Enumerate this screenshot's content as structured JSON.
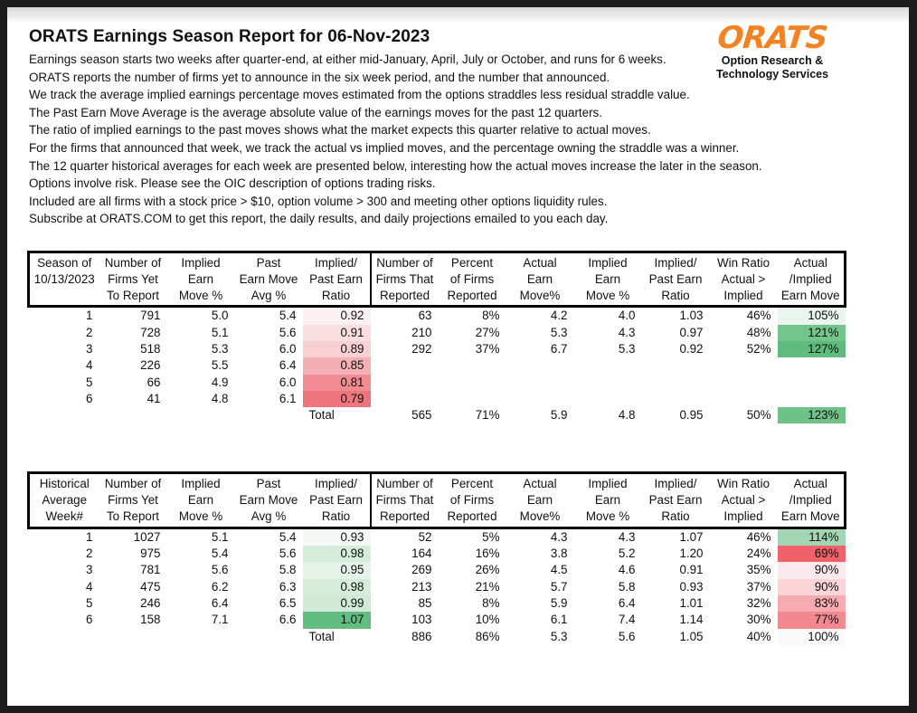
{
  "report": {
    "title": "ORATS Earnings Season Report for 06-Nov-2023",
    "intro_lines": [
      "Earnings season starts two weeks after quarter-end, at either mid-January, April, July or October, and runs for 6 weeks.",
      "ORATS reports the number of firms yet to announce in the six week period, and the number that announced.",
      "We track the average implied earnings percentage moves estimated from the options straddles less residual straddle value.",
      "The Past Earn Move Average is the average absolute value of the earnings moves for the past 12 quarters.",
      "The ratio of implied earnings to the past moves shows what the market expects this quarter relative to actual moves.",
      "For the firms that announced that week, we track the actual vs implied moves, and the percentage owning the straddle was a winner.",
      "The 12 quarter historical averages for each week are presented below, interesting how the actual moves increase the later in the season.",
      "Options involve risk. Please see the OIC description of options trading risks.",
      "Included are all firms with a stock price > $10, option volume > 300 and meeting other options liquidity rules.",
      "Subscribe at ORATS.COM to get this report, the daily results, and daily projections emailed to you each day."
    ]
  },
  "logo": {
    "wordmark": "ORATS",
    "subtitle_line1": "Option Research &",
    "subtitle_line2": "Technology Services",
    "brand_color": "#F58220"
  },
  "tables": [
    {
      "name": "current-season",
      "col_headers": [
        [
          "Season of",
          "10/13/2023",
          ""
        ],
        [
          "Number of",
          "Firms Yet",
          "To Report"
        ],
        [
          "Implied",
          "Earn",
          "Move %"
        ],
        [
          "Past",
          "Earn Move",
          "Avg %"
        ],
        [
          "Implied/",
          "Past Earn",
          "Ratio"
        ],
        [
          "Number of",
          "Firms That",
          "Reported"
        ],
        [
          "Percent",
          "of Firms",
          "Reported"
        ],
        [
          "Actual",
          "Earn",
          "Move%"
        ],
        [
          "Implied",
          "Earn",
          "Move %"
        ],
        [
          "Implied/",
          "Past Earn",
          "Ratio"
        ],
        [
          "Win Ratio",
          "Actual >",
          "Implied"
        ],
        [
          "Actual",
          "/Implied",
          "Earn Move"
        ]
      ],
      "rows": [
        {
          "cells": [
            "1",
            "791",
            "5.0",
            "5.4",
            "0.92",
            "63",
            "8%",
            "4.2",
            "4.0",
            "1.03",
            "46%",
            "105%"
          ],
          "ratio_bg": "#FBF1F2",
          "last_bg": "#EAF5ED"
        },
        {
          "cells": [
            "2",
            "728",
            "5.1",
            "5.6",
            "0.91",
            "210",
            "27%",
            "5.3",
            "4.3",
            "0.97",
            "48%",
            "121%"
          ],
          "ratio_bg": "#FADEE0",
          "last_bg": "#74C58C"
        },
        {
          "cells": [
            "3",
            "518",
            "5.3",
            "6.0",
            "0.89",
            "292",
            "37%",
            "6.7",
            "5.3",
            "0.92",
            "52%",
            "127%"
          ],
          "ratio_bg": "#F8D0D3",
          "last_bg": "#5DBC7D"
        },
        {
          "cells": [
            "4",
            "226",
            "5.5",
            "6.4",
            "0.85",
            "",
            "",
            "",
            "",
            "",
            "",
            ""
          ],
          "ratio_bg": "#F5B0B5",
          "last_bg": ""
        },
        {
          "cells": [
            "5",
            "66",
            "4.9",
            "6.0",
            "0.81",
            "",
            "",
            "",
            "",
            "",
            "",
            ""
          ],
          "ratio_bg": "#F18B92",
          "last_bg": ""
        },
        {
          "cells": [
            "6",
            "41",
            "4.8",
            "6.1",
            "0.79",
            "",
            "",
            "",
            "",
            "",
            "",
            ""
          ],
          "ratio_bg": "#EF757D",
          "last_bg": ""
        },
        {
          "is_total": true,
          "cells": [
            "",
            "",
            "",
            "",
            "Total",
            "565",
            "71%",
            "5.9",
            "4.8",
            "0.95",
            "50%",
            "123%"
          ],
          "ratio_bg": "",
          "last_bg": "#6EC287"
        }
      ]
    },
    {
      "name": "historical-average",
      "col_headers": [
        [
          "Historical",
          "Average",
          "Week#"
        ],
        [
          "Number of",
          "Firms Yet",
          "To Report"
        ],
        [
          "Implied",
          "Earn",
          "Move %"
        ],
        [
          "Past",
          "Earn Move",
          "Avg %"
        ],
        [
          "Implied/",
          "Past Earn",
          "Ratio"
        ],
        [
          "Number of",
          "Firms That",
          "Reported"
        ],
        [
          "Percent",
          "of Firms",
          "Reported"
        ],
        [
          "Actual",
          "Earn",
          "Move%"
        ],
        [
          "Implied",
          "Earn",
          "Move %"
        ],
        [
          "Implied/",
          "Past Earn",
          "Ratio"
        ],
        [
          "Win Ratio",
          "Actual >",
          "Implied"
        ],
        [
          "Actual",
          "/Implied",
          "Earn Move"
        ]
      ],
      "rows": [
        {
          "cells": [
            "1",
            "1027",
            "5.1",
            "5.4",
            "0.93",
            "52",
            "5%",
            "4.3",
            "4.3",
            "1.07",
            "46%",
            "114%"
          ],
          "ratio_bg": "#F3F8F4",
          "last_bg": "#A2D5B1"
        },
        {
          "cells": [
            "2",
            "975",
            "5.4",
            "5.6",
            "0.98",
            "164",
            "16%",
            "3.8",
            "5.2",
            "1.20",
            "24%",
            "69%"
          ],
          "ratio_bg": "#D5ECDB",
          "last_bg": "#F0616C"
        },
        {
          "cells": [
            "3",
            "781",
            "5.6",
            "5.8",
            "0.95",
            "269",
            "26%",
            "4.5",
            "4.6",
            "0.91",
            "35%",
            "90%"
          ],
          "ratio_bg": "#E6F3E9",
          "last_bg": "#FBEAEB"
        },
        {
          "cells": [
            "4",
            "475",
            "6.2",
            "6.3",
            "0.98",
            "213",
            "21%",
            "5.7",
            "5.8",
            "0.93",
            "37%",
            "90%"
          ],
          "ratio_bg": "#D5ECDB",
          "last_bg": "#F9D5D7"
        },
        {
          "cells": [
            "5",
            "246",
            "6.4",
            "6.5",
            "0.99",
            "85",
            "8%",
            "5.9",
            "6.4",
            "1.01",
            "32%",
            "83%"
          ],
          "ratio_bg": "#D0EAD7",
          "last_bg": "#F5ABB0"
        },
        {
          "cells": [
            "6",
            "158",
            "7.1",
            "6.6",
            "1.07",
            "103",
            "10%",
            "6.1",
            "7.4",
            "1.14",
            "30%",
            "77%"
          ],
          "ratio_bg": "#62BE80",
          "last_bg": "#F28990"
        },
        {
          "is_total": true,
          "cells": [
            "",
            "",
            "",
            "",
            "Total",
            "886",
            "86%",
            "5.3",
            "5.6",
            "1.05",
            "40%",
            "100%"
          ],
          "ratio_bg": "",
          "last_bg": "#FAFAFA"
        }
      ]
    }
  ]
}
